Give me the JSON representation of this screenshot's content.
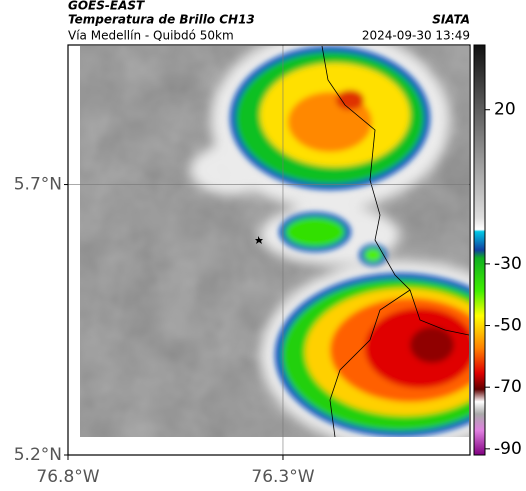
{
  "header": {
    "product": "GOES-EAST",
    "title": "Temperatura de Brillo CH13",
    "source": "SIATA",
    "subtitle": "Vía Medellín - Quibdó 50km",
    "timestamp": "2024-09-30 13:49"
  },
  "map": {
    "xlim": [
      -76.8,
      -75.865
    ],
    "ylim": [
      5.2,
      5.958
    ],
    "xticks": [
      {
        "value": -76.8,
        "label": "76.8°W"
      },
      {
        "value": -76.3,
        "label": "76.3°W"
      }
    ],
    "yticks": [
      {
        "value": 5.7,
        "label": "5.7°N"
      },
      {
        "value": 5.2,
        "label": "5.2°N"
      }
    ],
    "grid": true
  },
  "colorbar": {
    "vlim": [
      41,
      -92
    ],
    "ticks": [
      20,
      -30,
      -50,
      -70,
      -90
    ]
  }
}
